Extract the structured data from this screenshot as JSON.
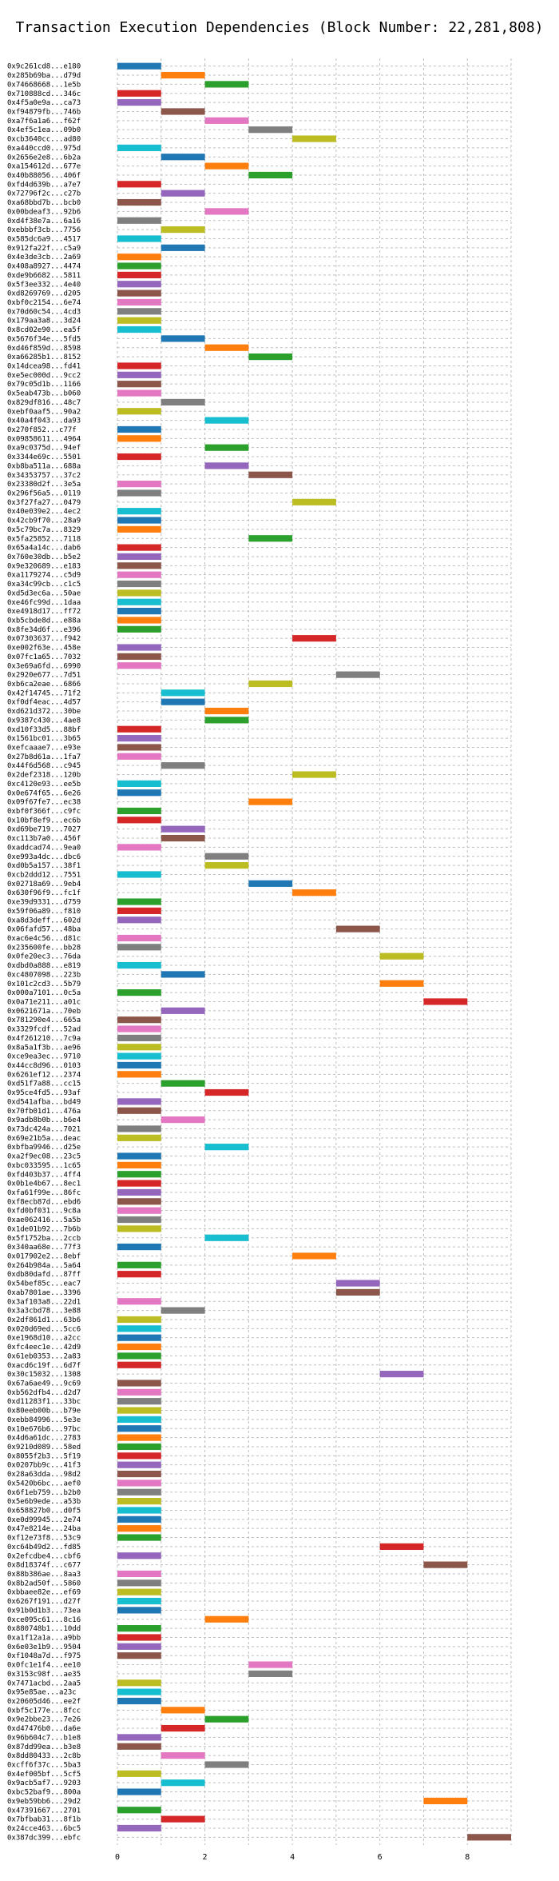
{
  "chart_data": {
    "type": "bar",
    "orientation": "horizontal-gantt",
    "title": "Transaction Execution Dependencies (Block Number: 22,281,808)",
    "xlabel": "",
    "ylabel": "",
    "xlim": [
      0,
      9
    ],
    "xticks": [
      "0",
      "2",
      "4",
      "6",
      "8"
    ],
    "grid": true,
    "palette": [
      "#1f77b4",
      "#ff7f0e",
      "#2ca02c",
      "#d62728",
      "#9467bd",
      "#8c564b",
      "#e377c2",
      "#7f7f7f",
      "#bcbd22",
      "#17becf"
    ],
    "transactions": [
      {
        "label": "0x9c261cd8...e180",
        "start": 0
      },
      {
        "label": "0x285b69ba...d79d",
        "start": 1
      },
      {
        "label": "0x74668668...1e5b",
        "start": 2
      },
      {
        "label": "0x710888cd...346c",
        "start": 0
      },
      {
        "label": "0x4f5a0e9a...ca73",
        "start": 0
      },
      {
        "label": "0xf94879fb...746b",
        "start": 1
      },
      {
        "label": "0xa7f6a1a6...f62f",
        "start": 2
      },
      {
        "label": "0x4ef5c1ea...09b0",
        "start": 3
      },
      {
        "label": "0xcb3640cc...ad80",
        "start": 4
      },
      {
        "label": "0xa440ccd0...975d",
        "start": 0
      },
      {
        "label": "0x2656e2e8...6b2a",
        "start": 1
      },
      {
        "label": "0xa154612d...677e",
        "start": 2
      },
      {
        "label": "0x40b88056...406f",
        "start": 3
      },
      {
        "label": "0xfd4d639b...a7e7",
        "start": 0
      },
      {
        "label": "0x72796f2c...c27b",
        "start": 1
      },
      {
        "label": "0xa68bbd7b...bcb0",
        "start": 0
      },
      {
        "label": "0x00bdeaf3...92b6",
        "start": 2
      },
      {
        "label": "0xd4f38e7a...6a16",
        "start": 0
      },
      {
        "label": "0xebbbf3cb...7756",
        "start": 1
      },
      {
        "label": "0x585dc6a9...4517",
        "start": 0
      },
      {
        "label": "0x912fa22f...c5a9",
        "start": 1
      },
      {
        "label": "0x4e3de3cb...2a69",
        "start": 0
      },
      {
        "label": "0x408a8927...4474",
        "start": 0
      },
      {
        "label": "0xde9b6682...5811",
        "start": 0
      },
      {
        "label": "0x5f3ee332...4e40",
        "start": 0
      },
      {
        "label": "0xd8269769...d205",
        "start": 0
      },
      {
        "label": "0xbf0c2154...6e74",
        "start": 0
      },
      {
        "label": "0x70d60c54...4cd3",
        "start": 0
      },
      {
        "label": "0x179aa3a8...3d24",
        "start": 0
      },
      {
        "label": "0x8cd02e90...ea5f",
        "start": 0
      },
      {
        "label": "0x5676f34e...5fd5",
        "start": 1
      },
      {
        "label": "0xd46f859d...8598",
        "start": 2
      },
      {
        "label": "0xa66285b1...8152",
        "start": 3
      },
      {
        "label": "0x14dcea98...fd41",
        "start": 0
      },
      {
        "label": "0xe5ec000d...9cc2",
        "start": 0
      },
      {
        "label": "0x79c05d1b...1166",
        "start": 0
      },
      {
        "label": "0x5eab473b...b060",
        "start": 0
      },
      {
        "label": "0x829df816...48c7",
        "start": 1
      },
      {
        "label": "0xebf0aaf5...90a2",
        "start": 0
      },
      {
        "label": "0x40a4f043...da93",
        "start": 2
      },
      {
        "label": "0x270f852...c77f",
        "start": 0
      },
      {
        "label": "0x09858611...4964",
        "start": 0
      },
      {
        "label": "0xa9c0375d...94ef",
        "start": 2
      },
      {
        "label": "0x3344e69c...5501",
        "start": 0
      },
      {
        "label": "0xb8ba511a...688a",
        "start": 2
      },
      {
        "label": "0x34353757...37c2",
        "start": 3
      },
      {
        "label": "0x23380d2f...3e5a",
        "start": 0
      },
      {
        "label": "0x296f56a5...0119",
        "start": 0
      },
      {
        "label": "0x3f27fa27...0479",
        "start": 4
      },
      {
        "label": "0x40e039e2...4ec2",
        "start": 0
      },
      {
        "label": "0x42cb9f70...28a9",
        "start": 0
      },
      {
        "label": "0x5c79bc7a...8329",
        "start": 0
      },
      {
        "label": "0x5fa25852...7118",
        "start": 3
      },
      {
        "label": "0x65a4a14c...dab6",
        "start": 0
      },
      {
        "label": "0x760e30db...b5e2",
        "start": 0
      },
      {
        "label": "0x9e320689...e183",
        "start": 0
      },
      {
        "label": "0xa1179274...c5d9",
        "start": 0
      },
      {
        "label": "0xa34c99cb...c1c5",
        "start": 0
      },
      {
        "label": "0xd5d3ec6a...50ae",
        "start": 0
      },
      {
        "label": "0xe46fc99d...1daa",
        "start": 0
      },
      {
        "label": "0xe4918d17...ff72",
        "start": 0
      },
      {
        "label": "0xb5cbde8d...e88a",
        "start": 0
      },
      {
        "label": "0x8fe34d6f...e396",
        "start": 0
      },
      {
        "label": "0x07303637...f942",
        "start": 4
      },
      {
        "label": "0xe002f63e...458e",
        "start": 0
      },
      {
        "label": "0x07fc1a65...7032",
        "start": 0
      },
      {
        "label": "0x3e69a6fd...6990",
        "start": 0
      },
      {
        "label": "0x2920e677...7d51",
        "start": 5
      },
      {
        "label": "0xb6ca2eae...6866",
        "start": 3
      },
      {
        "label": "0x42f14745...71f2",
        "start": 1
      },
      {
        "label": "0xf0df4eac...4d57",
        "start": 1
      },
      {
        "label": "0xd621d372...30be",
        "start": 2
      },
      {
        "label": "0x9387c430...4ae8",
        "start": 2
      },
      {
        "label": "0xd10f33d5...88bf",
        "start": 0
      },
      {
        "label": "0x1561bc01...3b65",
        "start": 0
      },
      {
        "label": "0xefcaaae7...e93e",
        "start": 0
      },
      {
        "label": "0x27b8d61a...1fa7",
        "start": 0
      },
      {
        "label": "0x44f6d568...c945",
        "start": 1
      },
      {
        "label": "0x2def2318...120b",
        "start": 4
      },
      {
        "label": "0xc4120e93...ee5b",
        "start": 0
      },
      {
        "label": "0x0e674f65...6e26",
        "start": 0
      },
      {
        "label": "0x09f67fe7...ec38",
        "start": 3
      },
      {
        "label": "0xbf0f366f...c9fc",
        "start": 0
      },
      {
        "label": "0x10bf8ef9...ec6b",
        "start": 0
      },
      {
        "label": "0xd69be719...7027",
        "start": 1
      },
      {
        "label": "0xc113b7a0...456f",
        "start": 1
      },
      {
        "label": "0xaddcad74...9ea0",
        "start": 0
      },
      {
        "label": "0xe993a4dc...dbc6",
        "start": 2
      },
      {
        "label": "0xd0b5a157...38f1",
        "start": 2
      },
      {
        "label": "0xcb2ddd12...7551",
        "start": 0
      },
      {
        "label": "0x02718a69...9eb4",
        "start": 3
      },
      {
        "label": "0x630f96f9...fc1f",
        "start": 4
      },
      {
        "label": "0xe39d9331...d759",
        "start": 0
      },
      {
        "label": "0x59f06a89...f810",
        "start": 0
      },
      {
        "label": "0xa8d3deff...602d",
        "start": 0
      },
      {
        "label": "0x06fafd57...48ba",
        "start": 5
      },
      {
        "label": "0xac6e4c56...d81c",
        "start": 0
      },
      {
        "label": "0x235600fe...bb28",
        "start": 0
      },
      {
        "label": "0x0fe20ec3...76da",
        "start": 6
      },
      {
        "label": "0xdbd0a888...e819",
        "start": 0
      },
      {
        "label": "0xc4807098...223b",
        "start": 1
      },
      {
        "label": "0x101c2cd3...5b79",
        "start": 6
      },
      {
        "label": "0x000a7101...0c5a",
        "start": 0
      },
      {
        "label": "0x0a71e211...a01c",
        "start": 7
      },
      {
        "label": "0x0621671a...70eb",
        "start": 1
      },
      {
        "label": "0x781290e4...665a",
        "start": 0
      },
      {
        "label": "0x3329fcdf...52ad",
        "start": 0
      },
      {
        "label": "0x4f261210...7c9a",
        "start": 0
      },
      {
        "label": "0x8a5a1f3b...ae96",
        "start": 0
      },
      {
        "label": "0xce9ea3ec...9710",
        "start": 0
      },
      {
        "label": "0x44cc8d96...0103",
        "start": 0
      },
      {
        "label": "0x6261ef12...2374",
        "start": 0
      },
      {
        "label": "0xd51f7a88...cc15",
        "start": 1
      },
      {
        "label": "0x95ce4fd5...93af",
        "start": 2
      },
      {
        "label": "0xd541afba...bd49",
        "start": 0
      },
      {
        "label": "0x70fb01d1...476a",
        "start": 0
      },
      {
        "label": "0x9adb8b0b...b6e4",
        "start": 1
      },
      {
        "label": "0x73dc424a...7021",
        "start": 0
      },
      {
        "label": "0x69e21b5a...deac",
        "start": 0
      },
      {
        "label": "0xbfba9946...d25e",
        "start": 2
      },
      {
        "label": "0xa2f9ec08...23c5",
        "start": 0
      },
      {
        "label": "0xbc033595...1c65",
        "start": 0
      },
      {
        "label": "0xfd403b37...4ff4",
        "start": 0
      },
      {
        "label": "0x0b1e4b67...8ec1",
        "start": 0
      },
      {
        "label": "0xfa61f99e...86fc",
        "start": 0
      },
      {
        "label": "0xf8ecb87d...ebd6",
        "start": 0
      },
      {
        "label": "0xfd0bf031...9c8a",
        "start": 0
      },
      {
        "label": "0xae062416...5a5b",
        "start": 0
      },
      {
        "label": "0x1de01b92...7b6b",
        "start": 0
      },
      {
        "label": "0x5f1752ba...2ccb",
        "start": 2
      },
      {
        "label": "0x340aa68e...77f3",
        "start": 0
      },
      {
        "label": "0x017902e2...8ebf",
        "start": 4
      },
      {
        "label": "0x264b984a...5a64",
        "start": 0
      },
      {
        "label": "0xdb80dafd...87ff",
        "start": 0
      },
      {
        "label": "0x54bef85c...eac7",
        "start": 5
      },
      {
        "label": "0xab7801ae...3396",
        "start": 5
      },
      {
        "label": "0x3af103a8...22d1",
        "start": 0
      },
      {
        "label": "0x3a3cbd78...3e88",
        "start": 1
      },
      {
        "label": "0x2df861d1...63b6",
        "start": 0
      },
      {
        "label": "0x020d69ed...5cc6",
        "start": 0
      },
      {
        "label": "0xe1968d10...a2cc",
        "start": 0
      },
      {
        "label": "0xfc4eec1e...42d9",
        "start": 0
      },
      {
        "label": "0x61eb0353...2a83",
        "start": 0
      },
      {
        "label": "0xacd6c19f...6d7f",
        "start": 0
      },
      {
        "label": "0x30c15032...1308",
        "start": 6
      },
      {
        "label": "0x67a6ae49...9c69",
        "start": 0
      },
      {
        "label": "0xb562dfb4...d2d7",
        "start": 0
      },
      {
        "label": "0xd11283f1...33bc",
        "start": 0
      },
      {
        "label": "0x80eeb00b...b79e",
        "start": 0
      },
      {
        "label": "0xebb84996...5e3e",
        "start": 0
      },
      {
        "label": "0x10e676b6...97bc",
        "start": 0
      },
      {
        "label": "0x4d6a61dc...2783",
        "start": 0
      },
      {
        "label": "0x9210d089...58ed",
        "start": 0
      },
      {
        "label": "0x8055f2b3...5f19",
        "start": 0
      },
      {
        "label": "0x0207bb9c...41f3",
        "start": 0
      },
      {
        "label": "0x28a63dda...98d2",
        "start": 0
      },
      {
        "label": "0x5420b6bc...aef0",
        "start": 0
      },
      {
        "label": "0x6f1eb759...b2b0",
        "start": 0
      },
      {
        "label": "0x5e6b9ede...a53b",
        "start": 0
      },
      {
        "label": "0x658827b0...d0f5",
        "start": 0
      },
      {
        "label": "0xe0d99945...2e74",
        "start": 0
      },
      {
        "label": "0x47e8214e...24ba",
        "start": 0
      },
      {
        "label": "0xf12e73f8...53c9",
        "start": 0
      },
      {
        "label": "0xc64b49d2...fd85",
        "start": 6
      },
      {
        "label": "0x2efcdbe4...cbf6",
        "start": 0
      },
      {
        "label": "0x8d18374f...c677",
        "start": 7
      },
      {
        "label": "0x88b386ae...8aa3",
        "start": 0
      },
      {
        "label": "0x8b2ad50f...5860",
        "start": 0
      },
      {
        "label": "0xbbaee82e...ef69",
        "start": 0
      },
      {
        "label": "0x6267f191...d27f",
        "start": 0
      },
      {
        "label": "0x91b0d1b3...73ea",
        "start": 0
      },
      {
        "label": "0xce095c61...8c16",
        "start": 2
      },
      {
        "label": "0x880748b1...10dd",
        "start": 0
      },
      {
        "label": "0xa1f12a1a...a9bb",
        "start": 0
      },
      {
        "label": "0x6e03e1b9...9504",
        "start": 0
      },
      {
        "label": "0xf1048a7d...f975",
        "start": 0
      },
      {
        "label": "0x0fc1e1f4...ee10",
        "start": 3
      },
      {
        "label": "0x3153c98f...ae35",
        "start": 3
      },
      {
        "label": "0x7471acbd...2aa5",
        "start": 0
      },
      {
        "label": "0x95e85ae...a23c",
        "start": 0
      },
      {
        "label": "0x20605d46...ee2f",
        "start": 0
      },
      {
        "label": "0xbf5c177e...8fcc",
        "start": 1
      },
      {
        "label": "0x9e2bbe23...7e26",
        "start": 2
      },
      {
        "label": "0xd47476b0...da6e",
        "start": 1
      },
      {
        "label": "0x96b604c7...b1e8",
        "start": 0
      },
      {
        "label": "0x87dd99ea...b3e8",
        "start": 0
      },
      {
        "label": "0x8dd80433...2c8b",
        "start": 1
      },
      {
        "label": "0xcff6f37c...5ba3",
        "start": 2
      },
      {
        "label": "0x4ef005bf...5cf5",
        "start": 0
      },
      {
        "label": "0x9acb5af7...9203",
        "start": 1
      },
      {
        "label": "0xbc52baf9...800a",
        "start": 0
      },
      {
        "label": "0x9eb59bb6...29d2",
        "start": 7
      },
      {
        "label": "0x47391667...2701",
        "start": 0
      },
      {
        "label": "0x7bfbab31...8f1b",
        "start": 1
      },
      {
        "label": "0x24cce463...6bc5",
        "start": 0
      },
      {
        "label": "0x387dc399...ebfc",
        "start": 8
      }
    ]
  }
}
